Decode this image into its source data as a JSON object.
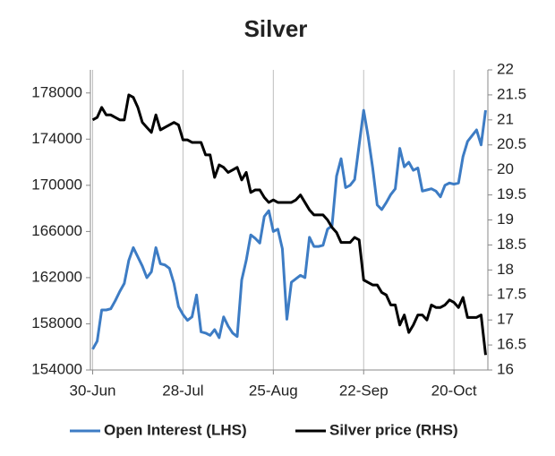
{
  "chart_data": {
    "type": "line",
    "title": "Silver",
    "categories": [
      "30-Jun",
      null,
      null,
      null,
      null,
      null,
      null,
      null,
      null,
      null,
      null,
      null,
      null,
      null,
      null,
      null,
      null,
      null,
      null,
      null,
      "28-Jul",
      null,
      null,
      null,
      null,
      null,
      null,
      null,
      null,
      null,
      null,
      null,
      null,
      null,
      null,
      null,
      null,
      null,
      null,
      null,
      "25-Aug",
      null,
      null,
      null,
      null,
      null,
      null,
      null,
      null,
      null,
      null,
      null,
      null,
      null,
      null,
      null,
      null,
      null,
      null,
      null,
      "22-Sep",
      null,
      null,
      null,
      null,
      null,
      null,
      null,
      null,
      null,
      null,
      null,
      null,
      null,
      null,
      null,
      null,
      null,
      null,
      null,
      "20-Oct",
      null,
      null,
      null,
      null,
      null,
      null,
      null
    ],
    "series": [
      {
        "name": "Open Interest (LHS)",
        "color": "#3d7cc4",
        "axis": "y",
        "values": [
          155800,
          156500,
          159200,
          159200,
          159300,
          160000,
          160800,
          161500,
          163500,
          164600,
          163800,
          163000,
          162000,
          162500,
          164600,
          163200,
          163100,
          162800,
          161500,
          159500,
          158800,
          158300,
          158600,
          160500,
          157300,
          157200,
          157000,
          157500,
          156800,
          158600,
          157800,
          157200,
          156900,
          161800,
          163500,
          165700,
          165400,
          165000,
          167300,
          167800,
          166000,
          166200,
          164500,
          158400,
          161600,
          161900,
          162200,
          162000,
          165500,
          164700,
          164700,
          164800,
          166200,
          166500,
          170800,
          172300,
          169800,
          170000,
          170500,
          173500,
          176500,
          174200,
          171500,
          168300,
          167900,
          168500,
          169200,
          169700,
          173200,
          171600,
          172000,
          171300,
          171500,
          169500,
          169600,
          169700,
          169500,
          169000,
          170000,
          170200,
          170100,
          170200,
          172500,
          173800,
          174300,
          174800,
          173500,
          176500
        ]
      },
      {
        "name": "Silver price (RHS)",
        "color": "#000000",
        "axis": "y2",
        "values": [
          21.0,
          21.05,
          21.25,
          21.1,
          21.1,
          21.05,
          21.0,
          21.0,
          21.5,
          21.45,
          21.25,
          20.95,
          20.85,
          20.75,
          21.1,
          20.8,
          20.85,
          20.9,
          20.95,
          20.9,
          20.6,
          20.6,
          20.55,
          20.55,
          20.55,
          20.3,
          20.3,
          19.85,
          20.1,
          20.05,
          19.95,
          20.0,
          20.05,
          19.8,
          19.95,
          19.55,
          19.6,
          19.6,
          19.45,
          19.35,
          19.4,
          19.35,
          19.35,
          19.35,
          19.35,
          19.4,
          19.5,
          19.35,
          19.2,
          19.1,
          19.1,
          19.1,
          19.0,
          18.85,
          18.75,
          18.55,
          18.55,
          18.55,
          18.65,
          18.6,
          17.8,
          17.75,
          17.7,
          17.7,
          17.55,
          17.5,
          17.3,
          17.3,
          16.9,
          17.1,
          16.75,
          16.9,
          17.1,
          17.1,
          17.0,
          17.3,
          17.25,
          17.25,
          17.3,
          17.4,
          17.35,
          17.25,
          17.45,
          17.05,
          17.05,
          17.05,
          17.1,
          16.3
        ]
      }
    ],
    "ylim": [
      154000,
      180000
    ],
    "yticks": [
      154000,
      158000,
      162000,
      166000,
      170000,
      174000,
      178000
    ],
    "y2lim": [
      16,
      22
    ],
    "y2ticks": [
      16,
      16.5,
      17,
      17.5,
      18,
      18.5,
      19,
      19.5,
      20,
      20.5,
      21,
      21.5,
      22
    ],
    "grid": true,
    "legend": "bottom"
  }
}
